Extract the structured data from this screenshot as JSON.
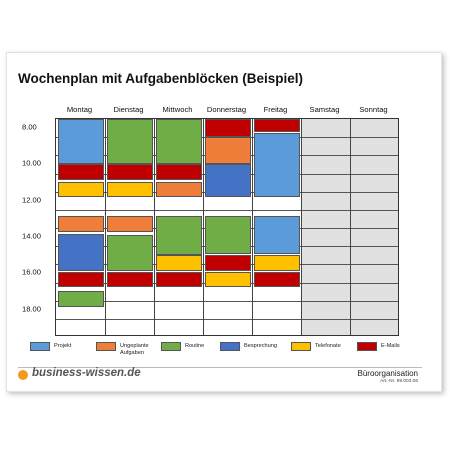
{
  "title": "Wochenplan mit Aufgabenblöcken (Beispiel)",
  "days": [
    "Montag",
    "Dienstag",
    "Mittwoch",
    "Donnerstag",
    "Freitag",
    "Samstag",
    "Sonntag"
  ],
  "weekend_day_indices": [
    5,
    6
  ],
  "time_labels": [
    {
      "label": "8.00",
      "hour": 8
    },
    {
      "label": "10.00",
      "hour": 10
    },
    {
      "label": "12.00",
      "hour": 12
    },
    {
      "label": "14.00",
      "hour": 14
    },
    {
      "label": "16.00",
      "hour": 16
    },
    {
      "label": "18.00",
      "hour": 18
    }
  ],
  "grid_start_hour": 7.5,
  "grid_end_hour": 19.5,
  "categories": {
    "projekt": {
      "label": "Projekt",
      "color": "#5b9bd9"
    },
    "ungeplant": {
      "label": "Ungeplante\nAufgaben",
      "color": "#ef7e3b"
    },
    "routine": {
      "label": "Routine",
      "color": "#70ad47"
    },
    "besprechung": {
      "label": "Besprechung",
      "color": "#4472c4"
    },
    "telefonate": {
      "label": "Telefonate",
      "color": "#ffc000"
    },
    "emails": {
      "label": "E-Mails",
      "color": "#c00000"
    }
  },
  "legend_order": [
    "projekt",
    "ungeplant",
    "routine",
    "besprechung",
    "telefonate",
    "emails"
  ],
  "blocks": [
    {
      "day": 0,
      "start": 7.5,
      "end": 10.0,
      "category": "projekt"
    },
    {
      "day": 0,
      "start": 10.0,
      "end": 10.85,
      "category": "emails"
    },
    {
      "day": 0,
      "start": 10.95,
      "end": 11.8,
      "category": "telefonate"
    },
    {
      "day": 0,
      "start": 12.85,
      "end": 13.7,
      "category": "ungeplant"
    },
    {
      "day": 0,
      "start": 13.85,
      "end": 15.85,
      "category": "besprechung"
    },
    {
      "day": 0,
      "start": 15.9,
      "end": 16.75,
      "category": "emails"
    },
    {
      "day": 0,
      "start": 16.95,
      "end": 17.85,
      "category": "routine"
    },
    {
      "day": 1,
      "start": 7.5,
      "end": 10.0,
      "category": "routine"
    },
    {
      "day": 1,
      "start": 10.0,
      "end": 10.85,
      "category": "emails"
    },
    {
      "day": 1,
      "start": 10.95,
      "end": 11.8,
      "category": "telefonate"
    },
    {
      "day": 1,
      "start": 12.85,
      "end": 13.7,
      "category": "ungeplant"
    },
    {
      "day": 1,
      "start": 13.9,
      "end": 15.85,
      "category": "routine"
    },
    {
      "day": 1,
      "start": 15.9,
      "end": 16.75,
      "category": "emails"
    },
    {
      "day": 2,
      "start": 7.5,
      "end": 10.0,
      "category": "routine"
    },
    {
      "day": 2,
      "start": 10.0,
      "end": 10.85,
      "category": "emails"
    },
    {
      "day": 2,
      "start": 10.95,
      "end": 11.8,
      "category": "ungeplant"
    },
    {
      "day": 2,
      "start": 12.85,
      "end": 15.0,
      "category": "routine"
    },
    {
      "day": 2,
      "start": 15.0,
      "end": 15.85,
      "category": "telefonate"
    },
    {
      "day": 2,
      "start": 15.9,
      "end": 16.75,
      "category": "emails"
    },
    {
      "day": 3,
      "start": 7.5,
      "end": 8.5,
      "category": "emails"
    },
    {
      "day": 3,
      "start": 8.5,
      "end": 10.0,
      "category": "ungeplant"
    },
    {
      "day": 3,
      "start": 10.0,
      "end": 11.8,
      "category": "besprechung"
    },
    {
      "day": 3,
      "start": 12.85,
      "end": 14.95,
      "category": "routine"
    },
    {
      "day": 3,
      "start": 15.0,
      "end": 15.85,
      "category": "emails"
    },
    {
      "day": 3,
      "start": 15.9,
      "end": 16.75,
      "category": "telefonate"
    },
    {
      "day": 4,
      "start": 7.2,
      "end": 8.2,
      "category": "emails"
    },
    {
      "day": 4,
      "start": 8.25,
      "end": 11.8,
      "category": "projekt"
    },
    {
      "day": 4,
      "start": 12.85,
      "end": 14.95,
      "category": "projekt"
    },
    {
      "day": 4,
      "start": 15.0,
      "end": 15.85,
      "category": "telefonate"
    },
    {
      "day": 4,
      "start": 15.9,
      "end": 16.75,
      "category": "emails"
    }
  ],
  "footer": {
    "brand": "business-wissen.de",
    "category": "Büroorganisation",
    "article": "Art.-Nr. 99.003.06"
  }
}
